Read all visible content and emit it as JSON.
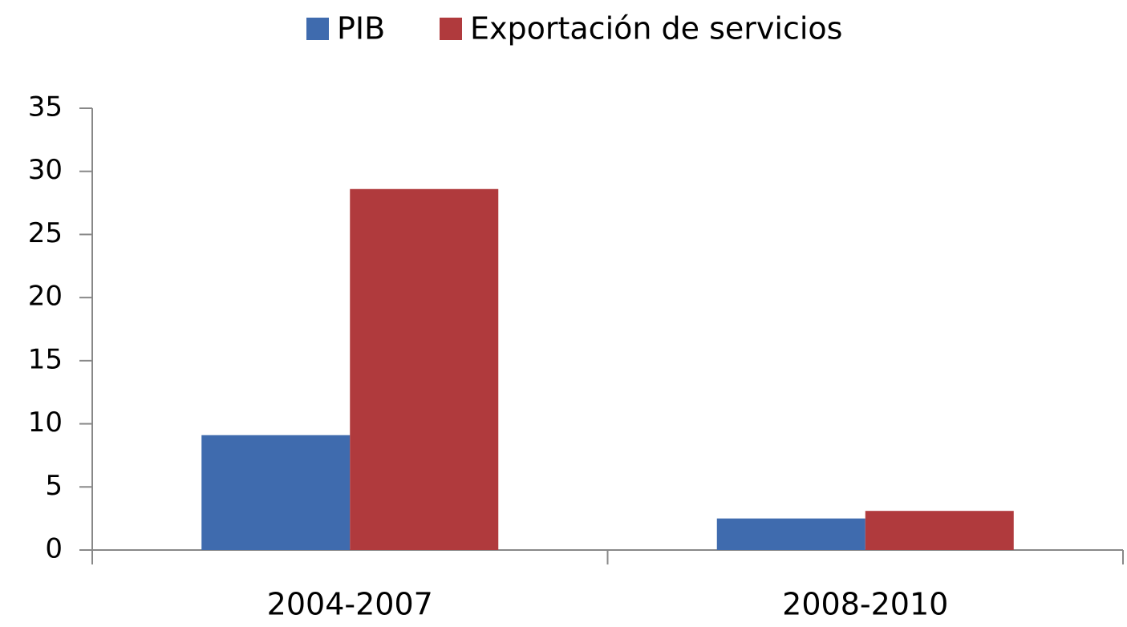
{
  "chart_data": {
    "type": "bar",
    "categories": [
      "2004-2007",
      "2008-2010"
    ],
    "series": [
      {
        "name": "PIB",
        "color": "#3f6bae",
        "values": [
          9.1,
          2.5
        ]
      },
      {
        "name": "Exportación de servicios",
        "color": "#b03a3d",
        "values": [
          28.6,
          3.1
        ]
      }
    ],
    "ylim": [
      0,
      35
    ],
    "yticks": [
      0,
      5,
      10,
      15,
      20,
      25,
      30,
      35
    ],
    "legend": "top"
  }
}
